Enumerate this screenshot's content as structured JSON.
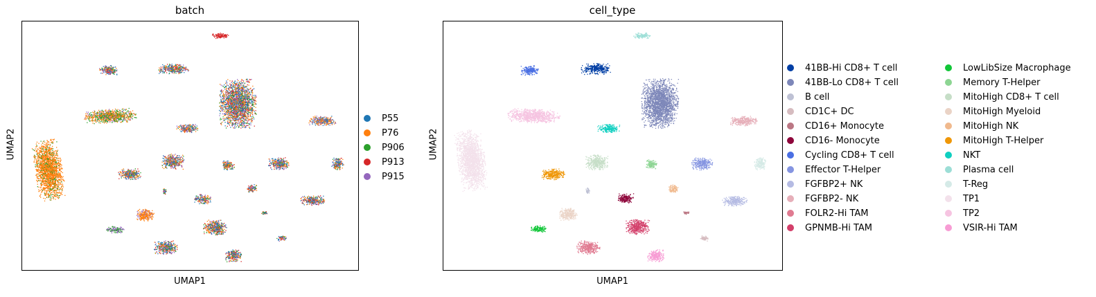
{
  "chart_data": [
    {
      "type": "scatter",
      "title": "batch",
      "xlabel": "UMAP1",
      "ylabel": "UMAP2",
      "legend_position": "right",
      "legend": [
        {
          "label": "P55",
          "color": "#1f77b4"
        },
        {
          "label": "P76",
          "color": "#ff7f0e"
        },
        {
          "label": "P906",
          "color": "#2ca02c"
        },
        {
          "label": "P913",
          "color": "#d62728"
        },
        {
          "label": "P915",
          "color": "#9467bd"
        }
      ]
    },
    {
      "type": "scatter",
      "title": "cell_type",
      "xlabel": "UMAP1",
      "ylabel": "UMAP2",
      "legend_position": "right",
      "legend": [
        {
          "label": "41BB-Hi CD8+ T cell",
          "color": "#023fa5"
        },
        {
          "label": "41BB-Lo CD8+ T cell",
          "color": "#7d87b9"
        },
        {
          "label": "B cell",
          "color": "#bec1d4"
        },
        {
          "label": "CD1C+ DC",
          "color": "#d6bcc0"
        },
        {
          "label": "CD16+ Monocyte",
          "color": "#bb7784"
        },
        {
          "label": "CD16- Monocyte",
          "color": "#8e063b"
        },
        {
          "label": "Cycling CD8+ T cell",
          "color": "#4a6fe3"
        },
        {
          "label": "Effector T-Helper",
          "color": "#8595e1"
        },
        {
          "label": "FGFBP2+ NK",
          "color": "#b5bbe3"
        },
        {
          "label": "FGFBP2- NK",
          "color": "#e6afb9"
        },
        {
          "label": "FOLR2-Hi TAM",
          "color": "#e07b91"
        },
        {
          "label": "GPNMB-Hi TAM",
          "color": "#d33f6a"
        },
        {
          "label": "LowLibSize Macrophage",
          "color": "#11c638"
        },
        {
          "label": "Memory T-Helper",
          "color": "#8dd593"
        },
        {
          "label": "MitoHigh CD8+ T cell",
          "color": "#c6dec7"
        },
        {
          "label": "MitoHigh Myeloid",
          "color": "#ead3c6"
        },
        {
          "label": "MitoHigh NK",
          "color": "#f0b98d"
        },
        {
          "label": "MitoHigh T-Helper",
          "color": "#ef9708"
        },
        {
          "label": "NKT",
          "color": "#0fcfc0"
        },
        {
          "label": "Plasma cell",
          "color": "#9cded6"
        },
        {
          "label": "T-Reg",
          "color": "#d5eae7"
        },
        {
          "label": "TP1",
          "color": "#f3e1eb"
        },
        {
          "label": "TP2",
          "color": "#f6c4e1"
        },
        {
          "label": "VSIR-Hi TAM",
          "color": "#f79cd4"
        }
      ]
    }
  ]
}
